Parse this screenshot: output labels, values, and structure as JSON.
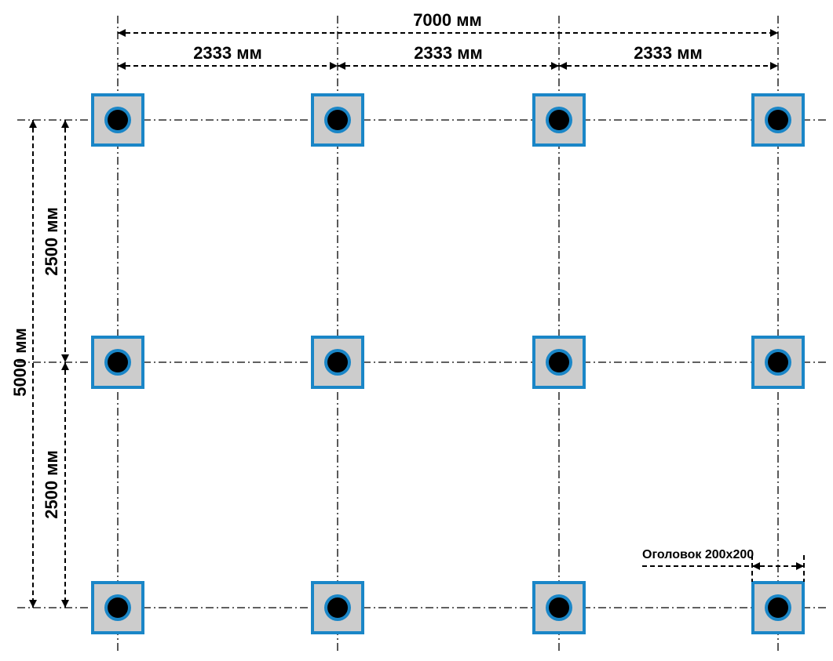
{
  "dimensions": {
    "total_width": "7000 мм",
    "spans": [
      "2333 мм",
      "2333 мм",
      "2333 мм"
    ],
    "total_depth": "5000 мм",
    "half_depths": [
      "2500 мм",
      "2500 мм"
    ],
    "cap_label": "Оголовок 200х200"
  },
  "grid": {
    "columns": 4,
    "rows": 3
  },
  "colors": {
    "cap_fill": "#cccccc",
    "cap_border": "#1a86c7",
    "pile_ring": "#1a86c7",
    "pile_core": "#000000",
    "lines": "#000000"
  }
}
